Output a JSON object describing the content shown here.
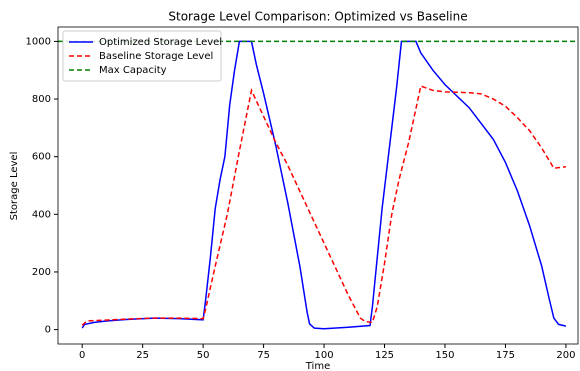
{
  "chart_data": {
    "type": "line",
    "title": "Storage Level Comparison: Optimized vs Baseline",
    "xlabel": "Time",
    "ylabel": "Storage Level",
    "xlim": [
      -10,
      205
    ],
    "ylim": [
      -50,
      1050
    ],
    "xticks": [
      0,
      25,
      50,
      75,
      100,
      125,
      150,
      175,
      200
    ],
    "yticks": [
      0,
      200,
      400,
      600,
      800,
      1000
    ],
    "grid": false,
    "legend": "upper left",
    "series": [
      {
        "name": "Optimized Storage Level",
        "color": "#0000ff",
        "dash": false,
        "x": [
          0,
          1,
          5,
          10,
          20,
          30,
          40,
          50,
          51,
          53,
          55,
          57,
          59,
          61,
          63,
          64,
          65,
          70,
          72,
          75,
          80,
          85,
          90,
          93,
          94,
          96,
          100,
          110,
          119,
          120,
          122,
          124,
          126,
          128,
          130,
          132,
          138,
          140,
          145,
          150,
          160,
          170,
          175,
          180,
          185,
          190,
          193,
          195,
          197,
          200
        ],
        "values": [
          5,
          18,
          25,
          30,
          36,
          40,
          38,
          34,
          100,
          250,
          420,
          520,
          600,
          780,
          900,
          950,
          1000,
          1000,
          920,
          820,
          640,
          440,
          220,
          60,
          20,
          5,
          3,
          8,
          14,
          80,
          250,
          420,
          560,
          700,
          840,
          1000,
          1000,
          960,
          900,
          850,
          770,
          660,
          580,
          480,
          360,
          220,
          110,
          40,
          18,
          12
        ]
      },
      {
        "name": "Baseline Storage Level",
        "color": "#ff0000",
        "dash": true,
        "x": [
          0,
          2,
          10,
          20,
          30,
          40,
          50,
          51,
          55,
          60,
          65,
          70,
          75,
          80,
          85,
          90,
          95,
          100,
          105,
          110,
          115,
          117,
          120,
          122,
          125,
          128,
          131,
          135,
          140,
          145,
          150,
          160,
          165,
          170,
          175,
          180,
          185,
          190,
          195,
          200
        ],
        "values": [
          15,
          30,
          33,
          37,
          40,
          40,
          38,
          70,
          220,
          400,
          620,
          830,
          740,
          650,
          570,
          480,
          390,
          300,
          210,
          120,
          40,
          28,
          25,
          80,
          230,
          400,
          520,
          650,
          845,
          830,
          825,
          822,
          818,
          800,
          775,
          735,
          690,
          630,
          560,
          565
        ]
      },
      {
        "name": "Max Capacity",
        "color": "#008000",
        "dash": true,
        "value": 1000
      }
    ]
  }
}
